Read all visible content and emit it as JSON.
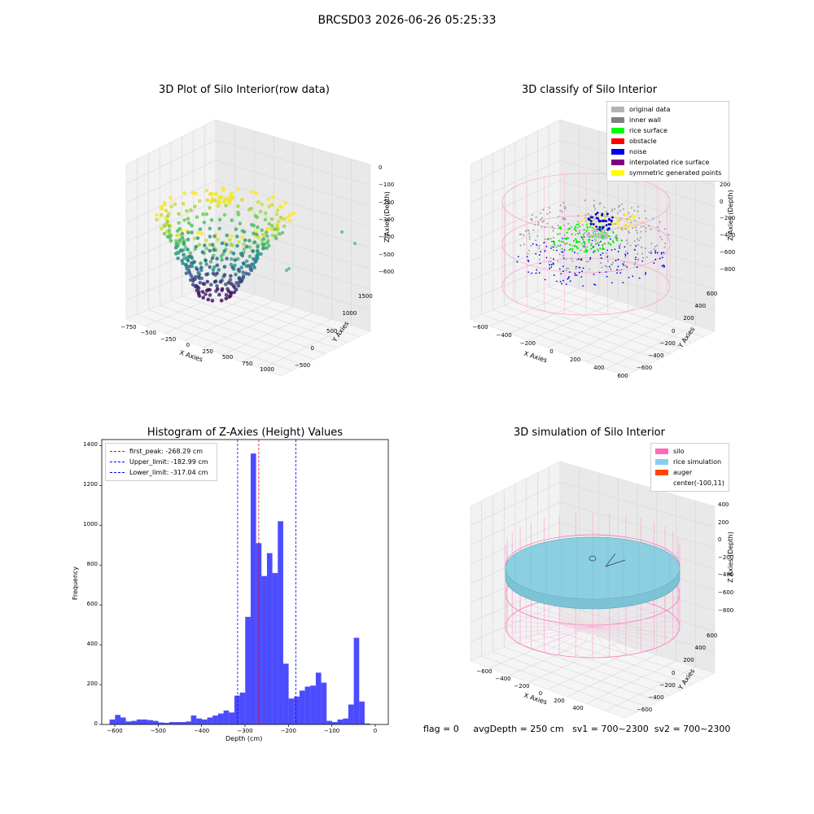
{
  "suptitle": "BRCSD03 2026-06-26 05:25:33",
  "panel_raw": {
    "title": "3D Plot of Silo Interior(row data)",
    "xlabel": "X Axies",
    "ylabel": "Y Axies",
    "zlabel": "Z Axies (Depth)",
    "xticks": [
      "−750",
      "−500",
      "−250",
      "0",
      "250",
      "500",
      "750",
      "1000"
    ],
    "yticks": [
      "−500",
      "0",
      "500",
      "1000",
      "1500"
    ],
    "zticks": [
      "0",
      "−100",
      "−200",
      "−300",
      "−400",
      "−500",
      "−600"
    ]
  },
  "panel_classify": {
    "title": "3D classify of Silo Interior",
    "xlabel": "X Axies",
    "ylabel": "Y Axies",
    "zlabel": "Z Axies (Depth)",
    "xticks": [
      "−600",
      "−400",
      "−200",
      "0",
      "200",
      "400",
      "600"
    ],
    "yticks": [
      "−600",
      "−400",
      "−200",
      "0",
      "200",
      "400",
      "600"
    ],
    "zticks": [
      "200",
      "0",
      "−200",
      "−400",
      "−600",
      "−800"
    ],
    "legend": [
      {
        "label": "original data",
        "color": "#b3b3b3"
      },
      {
        "label": "inner wall",
        "color": "#808080"
      },
      {
        "label": "rice surface",
        "color": "#00ff00"
      },
      {
        "label": "obstacle",
        "color": "#ff0000"
      },
      {
        "label": "noise",
        "color": "#0000ee"
      },
      {
        "label": "interpolated rice surface",
        "color": "#800080"
      },
      {
        "label": "symmetric generated points",
        "color": "#ffff00"
      }
    ]
  },
  "panel_sim": {
    "title": "3D simulation of Silo Interior",
    "xlabel": "X Axies",
    "ylabel": "Y Axies",
    "zlabel": "Z Axies (Depth)",
    "xticks": [
      "−600",
      "−400",
      "−200",
      "0",
      "200",
      "400"
    ],
    "yticks": [
      "−600",
      "−400",
      "−200",
      "0",
      "200",
      "400",
      "600"
    ],
    "zticks": [
      "400",
      "200",
      "0",
      "−200",
      "−400",
      "−600",
      "−800"
    ],
    "legend": [
      {
        "label": "silo",
        "color": "#ff69b4"
      },
      {
        "label": "rice simulation",
        "color": "#87ceeb"
      },
      {
        "label": "auger",
        "color": "#ff4500"
      },
      {
        "label": "center(-100,11)",
        "color": ""
      }
    ]
  },
  "chart_data": [
    {
      "type": "histogram",
      "title": "Histogram of Z-Axies (Height) Values",
      "xlabel": "Depth (cm)",
      "ylabel": "Frequency",
      "xlim": [
        -630,
        30
      ],
      "ylim": [
        0,
        1430
      ],
      "xticks": [
        "−600",
        "−500",
        "−400",
        "−300",
        "−200",
        "−100",
        "0"
      ],
      "yticks": [
        "0",
        "200",
        "400",
        "600",
        "800",
        "1000",
        "1200",
        "1400"
      ],
      "color": "#0000ff",
      "bin_width": 12.5,
      "bin_start": -612,
      "counts": [
        25,
        48,
        35,
        15,
        18,
        25,
        25,
        22,
        18,
        10,
        8,
        12,
        12,
        12,
        15,
        45,
        30,
        25,
        35,
        45,
        55,
        70,
        60,
        145,
        160,
        540,
        1360,
        910,
        745,
        860,
        760,
        1020,
        305,
        130,
        140,
        170,
        190,
        195,
        260,
        210,
        18,
        12,
        25,
        30,
        100,
        435,
        115,
        5
      ],
      "lines": [
        {
          "label": "first_peak: -268.29 cm",
          "value": -268.29,
          "color": "#ff0000"
        },
        {
          "label": "Upper_limit: -182.99 cm",
          "value": -182.99,
          "color": "#0000ff"
        },
        {
          "label": "Lower_limit: -317.04 cm",
          "value": -317.04,
          "color": "#0000ff"
        }
      ]
    }
  ],
  "footer": {
    "flag": "flag = 0",
    "avgdepth": "avgDepth = 250 cm",
    "sv1": "sv1 = 700~2300",
    "sv2": "sv2 = 700~2300"
  }
}
